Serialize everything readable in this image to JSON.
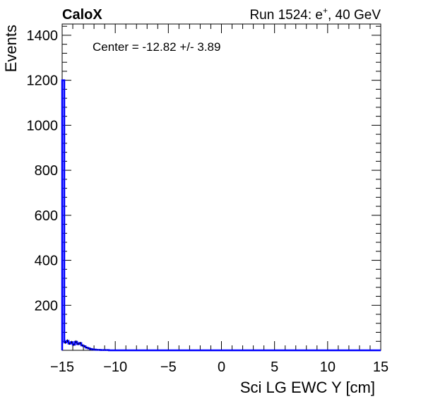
{
  "header": {
    "experiment": "CaloX",
    "run_prefix": "Run 1524: e",
    "run_sup": "+",
    "run_suffix": ", 40 GeV"
  },
  "annotation": "Center = -12.82 +/- 3.89",
  "colors": {
    "histogram": "#0000ff",
    "axis": "#000000",
    "background": "#ffffff"
  },
  "chart_data": {
    "type": "histogram",
    "xlabel": "Sci LG EWC Y [cm]",
    "ylabel": "Events",
    "xlim": [
      -15,
      15
    ],
    "ylim": [
      0,
      1450
    ],
    "x_ticks": [
      -15,
      -10,
      -5,
      0,
      5,
      10,
      15
    ],
    "x_tick_labels": [
      "−15",
      "−10",
      "−5",
      "0",
      "5",
      "10",
      "15"
    ],
    "y_ticks": [
      200,
      400,
      600,
      800,
      1000,
      1200,
      1400
    ],
    "y_tick_labels": [
      "200",
      "400",
      "600",
      "800",
      "1000",
      "1200",
      "1400"
    ],
    "bin_width": 0.2,
    "bin_centers": [
      -14.9,
      -14.7,
      -14.5,
      -14.3,
      -14.1,
      -13.9,
      -13.7,
      -13.5,
      -13.3,
      -13.1,
      -12.9,
      -12.7,
      -12.5,
      -12.3,
      -12.1,
      -11.9,
      -11.7,
      -11.5,
      -11.3,
      -11.1,
      -10.9,
      -10.7
    ],
    "values": [
      1200,
      35,
      42,
      30,
      36,
      25,
      38,
      28,
      32,
      22,
      18,
      12,
      9,
      6,
      4,
      3,
      2,
      2,
      1,
      1,
      1,
      1
    ],
    "grid": false,
    "legend": "none"
  }
}
